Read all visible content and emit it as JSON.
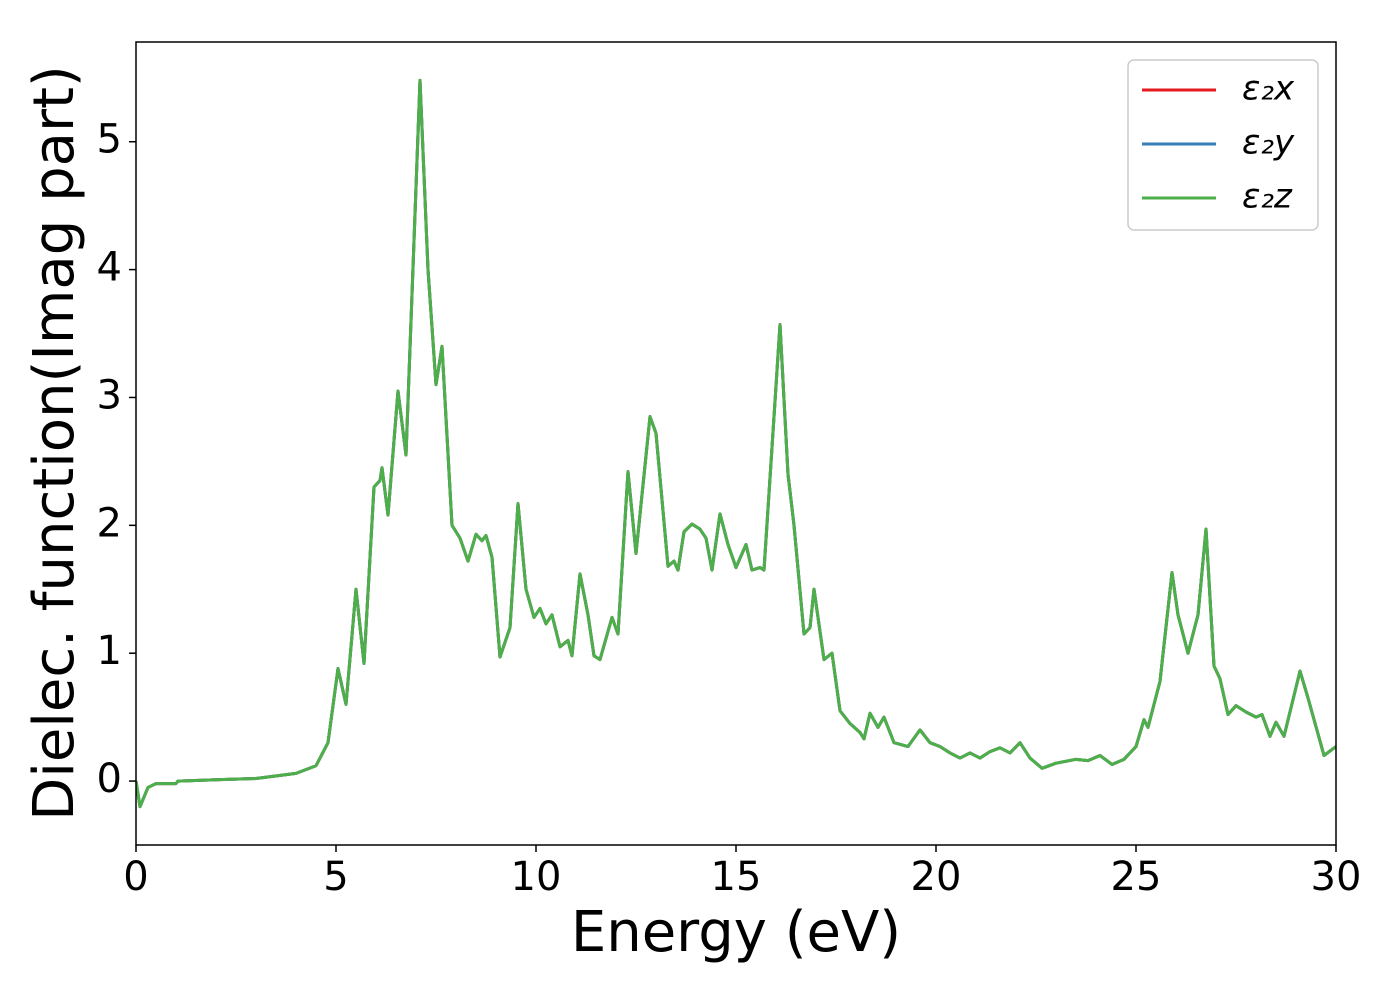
{
  "chart_data": {
    "type": "line",
    "xlabel": "Energy (eV)",
    "ylabel": "Dielec. function(Imag part)",
    "x": [
      0,
      0.1,
      0.3,
      0.5,
      1.0,
      1.05,
      2,
      3,
      4,
      4.5,
      4.8,
      5.05,
      5.25,
      5.5,
      5.7,
      5.95,
      6.1,
      6.15,
      6.3,
      6.55,
      6.75,
      7.1,
      7.3,
      7.5,
      7.65,
      7.9,
      8.1,
      8.3,
      8.5,
      8.65,
      8.75,
      8.9,
      9.1,
      9.35,
      9.55,
      9.75,
      9.95,
      10.1,
      10.25,
      10.4,
      10.6,
      10.8,
      10.9,
      11.1,
      11.3,
      11.45,
      11.6,
      11.9,
      12.05,
      12.3,
      12.5,
      12.85,
      13.0,
      13.3,
      13.45,
      13.55,
      13.7,
      13.9,
      14.1,
      14.25,
      14.4,
      14.6,
      14.8,
      15.0,
      15.25,
      15.4,
      15.6,
      15.7,
      16.1,
      16.3,
      16.45,
      16.7,
      16.85,
      16.95,
      17.2,
      17.4,
      17.6,
      17.85,
      18.1,
      18.2,
      18.35,
      18.55,
      18.7,
      18.95,
      19.3,
      19.6,
      19.85,
      20.1,
      20.35,
      20.6,
      20.85,
      21.1,
      21.35,
      21.6,
      21.85,
      22.1,
      22.35,
      22.65,
      23.0,
      23.5,
      23.8,
      24.1,
      24.4,
      24.7,
      25.0,
      25.2,
      25.3,
      25.6,
      25.9,
      26.05,
      26.3,
      26.55,
      26.75,
      26.95,
      27.1,
      27.3,
      27.5,
      27.75,
      28.0,
      28.15,
      28.35,
      28.5,
      28.7,
      29.1,
      29.3,
      29.7,
      30
    ],
    "series": [
      {
        "name": "ε₂x",
        "color": "#e41a1c",
        "values": [
          0,
          -0.2,
          -0.05,
          -0.02,
          -0.02,
          0.0,
          0.01,
          0.02,
          0.06,
          0.12,
          0.3,
          0.88,
          0.6,
          1.5,
          0.92,
          2.3,
          2.35,
          2.45,
          2.08,
          3.05,
          2.55,
          5.48,
          4.0,
          3.1,
          3.4,
          2.0,
          1.9,
          1.72,
          1.93,
          1.88,
          1.92,
          1.75,
          0.97,
          1.2,
          2.17,
          1.5,
          1.28,
          1.35,
          1.23,
          1.3,
          1.05,
          1.1,
          0.98,
          1.62,
          1.3,
          0.98,
          0.95,
          1.28,
          1.15,
          2.42,
          1.78,
          2.85,
          2.72,
          1.68,
          1.72,
          1.65,
          1.95,
          2.01,
          1.97,
          1.9,
          1.65,
          2.09,
          1.85,
          1.67,
          1.85,
          1.65,
          1.67,
          1.65,
          3.57,
          2.4,
          2.0,
          1.15,
          1.2,
          1.5,
          0.95,
          1.0,
          0.55,
          0.45,
          0.38,
          0.33,
          0.53,
          0.42,
          0.5,
          0.3,
          0.27,
          0.4,
          0.3,
          0.27,
          0.22,
          0.18,
          0.22,
          0.18,
          0.23,
          0.26,
          0.22,
          0.3,
          0.18,
          0.1,
          0.14,
          0.17,
          0.16,
          0.2,
          0.13,
          0.17,
          0.27,
          0.48,
          0.42,
          0.78,
          1.63,
          1.3,
          1.0,
          1.3,
          1.97,
          0.9,
          0.8,
          0.52,
          0.59,
          0.54,
          0.5,
          0.52,
          0.35,
          0.46,
          0.35,
          0.86,
          0.65,
          0.2,
          0.27
        ]
      },
      {
        "name": "ε₂y",
        "color": "#377eb8",
        "values": [
          0,
          -0.2,
          -0.05,
          -0.02,
          -0.02,
          0.0,
          0.01,
          0.02,
          0.06,
          0.12,
          0.3,
          0.88,
          0.6,
          1.5,
          0.92,
          2.3,
          2.35,
          2.45,
          2.08,
          3.05,
          2.55,
          5.48,
          4.0,
          3.1,
          3.4,
          2.0,
          1.9,
          1.72,
          1.93,
          1.88,
          1.92,
          1.75,
          0.97,
          1.2,
          2.17,
          1.5,
          1.28,
          1.35,
          1.23,
          1.3,
          1.05,
          1.1,
          0.98,
          1.62,
          1.3,
          0.98,
          0.95,
          1.28,
          1.15,
          2.42,
          1.78,
          2.85,
          2.72,
          1.68,
          1.72,
          1.65,
          1.95,
          2.01,
          1.97,
          1.9,
          1.65,
          2.09,
          1.85,
          1.67,
          1.85,
          1.65,
          1.67,
          1.65,
          3.57,
          2.4,
          2.0,
          1.15,
          1.2,
          1.5,
          0.95,
          1.0,
          0.55,
          0.45,
          0.38,
          0.33,
          0.53,
          0.42,
          0.5,
          0.3,
          0.27,
          0.4,
          0.3,
          0.27,
          0.22,
          0.18,
          0.22,
          0.18,
          0.23,
          0.26,
          0.22,
          0.3,
          0.18,
          0.1,
          0.14,
          0.17,
          0.16,
          0.2,
          0.13,
          0.17,
          0.27,
          0.48,
          0.42,
          0.78,
          1.63,
          1.3,
          1.0,
          1.3,
          1.97,
          0.9,
          0.8,
          0.52,
          0.59,
          0.54,
          0.5,
          0.52,
          0.35,
          0.46,
          0.35,
          0.86,
          0.65,
          0.2,
          0.27
        ]
      },
      {
        "name": "ε₂z",
        "color": "#4daf4a",
        "values": [
          0,
          -0.2,
          -0.05,
          -0.02,
          -0.02,
          0.0,
          0.01,
          0.02,
          0.06,
          0.12,
          0.3,
          0.88,
          0.6,
          1.5,
          0.92,
          2.3,
          2.35,
          2.45,
          2.08,
          3.05,
          2.55,
          5.48,
          4.0,
          3.1,
          3.4,
          2.0,
          1.9,
          1.72,
          1.93,
          1.88,
          1.92,
          1.75,
          0.97,
          1.2,
          2.17,
          1.5,
          1.28,
          1.35,
          1.23,
          1.3,
          1.05,
          1.1,
          0.98,
          1.62,
          1.3,
          0.98,
          0.95,
          1.28,
          1.15,
          2.42,
          1.78,
          2.85,
          2.72,
          1.68,
          1.72,
          1.65,
          1.95,
          2.01,
          1.97,
          1.9,
          1.65,
          2.09,
          1.85,
          1.67,
          1.85,
          1.65,
          1.67,
          1.65,
          3.57,
          2.4,
          2.0,
          1.15,
          1.2,
          1.5,
          0.95,
          1.0,
          0.55,
          0.45,
          0.38,
          0.33,
          0.53,
          0.42,
          0.5,
          0.3,
          0.27,
          0.4,
          0.3,
          0.27,
          0.22,
          0.18,
          0.22,
          0.18,
          0.23,
          0.26,
          0.22,
          0.3,
          0.18,
          0.1,
          0.14,
          0.17,
          0.16,
          0.2,
          0.13,
          0.17,
          0.27,
          0.48,
          0.42,
          0.78,
          1.63,
          1.3,
          1.0,
          1.3,
          1.97,
          0.9,
          0.8,
          0.52,
          0.59,
          0.54,
          0.5,
          0.52,
          0.35,
          0.46,
          0.35,
          0.86,
          0.65,
          0.2,
          0.27
        ]
      }
    ],
    "xlim": [
      0,
      30
    ],
    "xticks": [
      0,
      5,
      10,
      15,
      20,
      25,
      30
    ],
    "ylim": [
      -0.5,
      5.78
    ],
    "yticks": [
      0,
      1,
      2,
      3,
      4,
      5
    ],
    "grid": false,
    "legend": "upper right"
  }
}
